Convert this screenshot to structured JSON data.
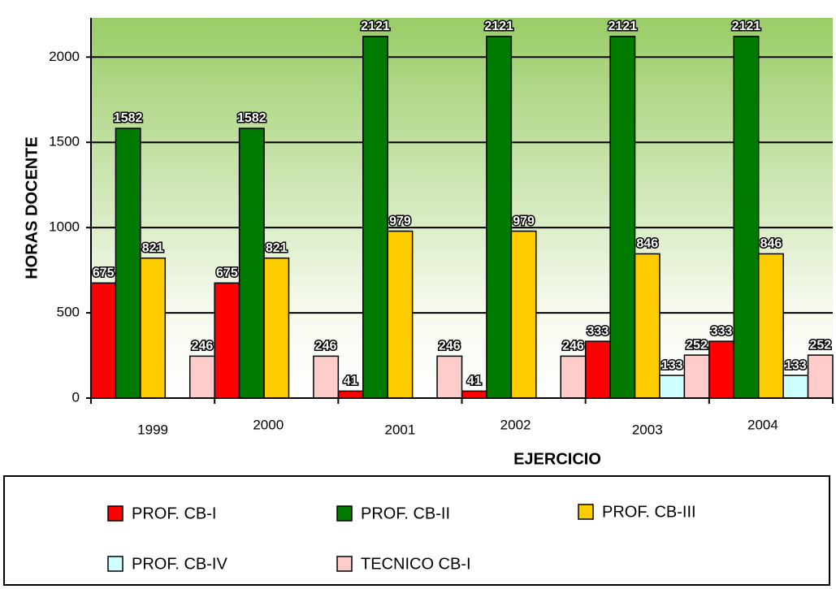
{
  "chart_data": {
    "type": "bar",
    "categories": [
      "1999",
      "2000",
      "2001",
      "2002",
      "2003",
      "2004"
    ],
    "series": [
      {
        "name": "PROF. CB-I",
        "color": "#ff0000",
        "values": [
          675,
          675,
          41,
          41,
          333,
          333
        ]
      },
      {
        "name": "PROF. CB-II",
        "color": "#007a00",
        "values": [
          1582,
          1582,
          2121,
          2121,
          2121,
          2121
        ]
      },
      {
        "name": "PROF. CB-III",
        "color": "#ffcc00",
        "values": [
          821,
          821,
          979,
          979,
          846,
          846
        ]
      },
      {
        "name": "PROF. CB-IV",
        "color": "#ccffff",
        "values": [
          null,
          null,
          null,
          null,
          133,
          133
        ]
      },
      {
        "name": "TECNICO CB-I",
        "color": "#ffcccc",
        "values": [
          246,
          246,
          246,
          246,
          252,
          252
        ]
      }
    ],
    "xlabel": "EJERCICIO",
    "ylabel": "HORAS DOCENTE",
    "ylim": [
      0,
      2230
    ],
    "yticks": [
      0,
      500,
      1000,
      1500,
      2000
    ],
    "grid": true,
    "legend": "bottom"
  }
}
